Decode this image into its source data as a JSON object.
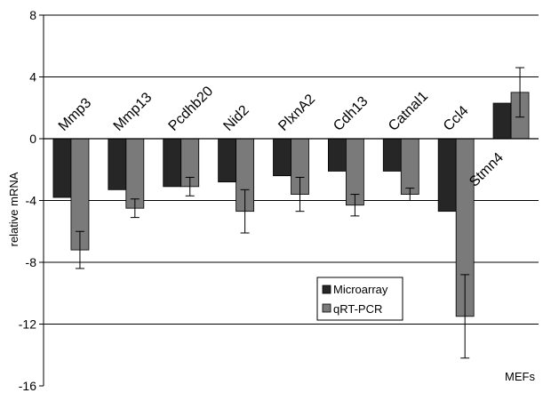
{
  "chart_data": {
    "type": "bar",
    "title": "",
    "xlabel": "MEFs",
    "ylabel": "relative mRNA",
    "ylim": [
      -16,
      8
    ],
    "yticks": [
      8,
      4,
      0,
      -4,
      -8,
      -12,
      -16
    ],
    "ytick_labels": [
      "8",
      "4",
      "0",
      "-4",
      "-8",
      "-12",
      "-16"
    ],
    "grid": true,
    "legend_position": "bottom-center",
    "categories": [
      "Mmp3",
      "Mmp13",
      "Pcdhb20",
      "Nid2",
      "PlxnA2",
      "Cdh13",
      "Catnal1",
      "Ccl4",
      "Stmn4"
    ],
    "series": [
      {
        "name": "Microarray",
        "color": "#262626",
        "values": [
          -3.8,
          -3.3,
          -3.1,
          -2.8,
          -2.4,
          -2.1,
          -2.1,
          -4.7,
          2.3
        ],
        "errors": [
          0,
          0,
          0,
          0,
          0,
          0,
          0,
          0,
          0
        ]
      },
      {
        "name": "qRT-PCR",
        "color": "#7a7a7a",
        "values": [
          -7.2,
          -4.5,
          -3.1,
          -4.7,
          -3.6,
          -4.3,
          -3.6,
          -11.5,
          3.0
        ],
        "errors": [
          1.2,
          0.6,
          0.6,
          1.4,
          1.1,
          0.7,
          0.4,
          2.7,
          1.6
        ]
      }
    ]
  }
}
